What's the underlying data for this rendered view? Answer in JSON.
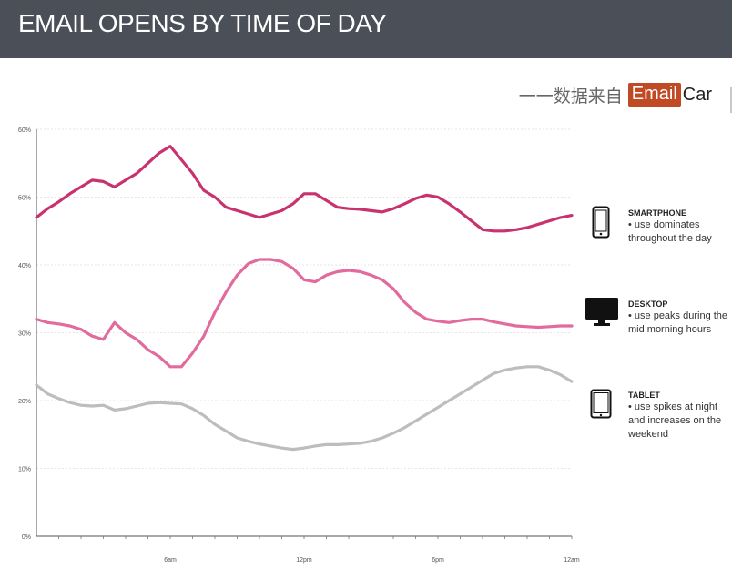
{
  "header": {
    "title": "EMAIL OPENS BY TIME OF DAY"
  },
  "source": {
    "prefix": "一一数据来自",
    "brand_highlight": "Email",
    "brand_rest": "Car"
  },
  "legend": [
    {
      "title": "SMARTPHONE",
      "note": "• use dominates throughout the day",
      "icon": "smartphone-icon"
    },
    {
      "title": "DESKTOP",
      "note": "• use peaks during the mid morning hours",
      "icon": "desktop-icon"
    },
    {
      "title": "TABLET",
      "note": "• use spikes at night and increases on the weekend",
      "icon": "tablet-icon"
    }
  ],
  "chart_data": {
    "type": "line",
    "title": "EMAIL OPENS BY TIME OF DAY",
    "xlabel": "",
    "ylabel": "",
    "xlim": [
      0,
      24
    ],
    "ylim": [
      0,
      60
    ],
    "yticks": [
      0,
      10,
      20,
      30,
      40,
      50,
      60
    ],
    "ytick_labels": [
      "0%",
      "10%",
      "20%",
      "30%",
      "40%",
      "50%",
      "60%"
    ],
    "xticks": [
      6,
      12,
      18,
      24
    ],
    "xtick_labels": [
      "6am",
      "12pm",
      "6pm",
      "12am"
    ],
    "grid": true,
    "colors": {
      "smartphone": "#c8336f",
      "desktop": "#e16b9c",
      "tablet": "#bdbdbd"
    },
    "x": [
      0,
      0.5,
      1,
      1.5,
      2,
      2.5,
      3,
      3.5,
      4,
      4.5,
      5,
      5.5,
      6,
      6.5,
      7,
      7.5,
      8,
      8.5,
      9,
      9.5,
      10,
      10.5,
      11,
      11.5,
      12,
      12.5,
      13,
      13.5,
      14,
      14.5,
      15,
      15.5,
      16,
      16.5,
      17,
      17.5,
      18,
      18.5,
      19,
      19.5,
      20,
      20.5,
      21,
      21.5,
      22,
      22.5,
      23,
      23.5,
      24
    ],
    "series": [
      {
        "name": "SMARTPHONE",
        "values": [
          47,
          48.3,
          49.3,
          50.5,
          51.5,
          52.5,
          52.3,
          51.5,
          52.5,
          53.5,
          55,
          56.5,
          57.5,
          55.5,
          53.5,
          51,
          50,
          48.5,
          48,
          47.5,
          47,
          47.5,
          48,
          49,
          50.5,
          50.5,
          49.5,
          48.5,
          48.3,
          48.2,
          48,
          47.8,
          48.3,
          49,
          49.8,
          50.3,
          50,
          49,
          47.8,
          46.5,
          45.2,
          45,
          45,
          45.2,
          45.5,
          46,
          46.5,
          47,
          47.3
        ]
      },
      {
        "name": "DESKTOP",
        "values": [
          32,
          31.5,
          31.3,
          31,
          30.5,
          29.5,
          29,
          31.5,
          30,
          29,
          27.5,
          26.5,
          25,
          25,
          27,
          29.5,
          33,
          36,
          38.5,
          40.2,
          40.8,
          40.8,
          40.5,
          39.5,
          37.8,
          37.5,
          38.5,
          39,
          39.2,
          39,
          38.5,
          37.8,
          36.5,
          34.5,
          33,
          32,
          31.7,
          31.5,
          31.8,
          32,
          32,
          31.6,
          31.3,
          31,
          30.9,
          30.8,
          30.9,
          31,
          31
        ]
      },
      {
        "name": "TABLET",
        "values": [
          22.3,
          21,
          20.3,
          19.7,
          19.3,
          19.2,
          19.3,
          18.6,
          18.8,
          19.2,
          19.6,
          19.7,
          19.6,
          19.5,
          18.8,
          17.8,
          16.5,
          15.5,
          14.5,
          14,
          13.6,
          13.3,
          13,
          12.8,
          13,
          13.3,
          13.5,
          13.5,
          13.6,
          13.7,
          14,
          14.5,
          15.2,
          16,
          17,
          18,
          19,
          20,
          21,
          22,
          23,
          24,
          24.5,
          24.8,
          25,
          25,
          24.5,
          23.8,
          22.8
        ]
      }
    ]
  }
}
